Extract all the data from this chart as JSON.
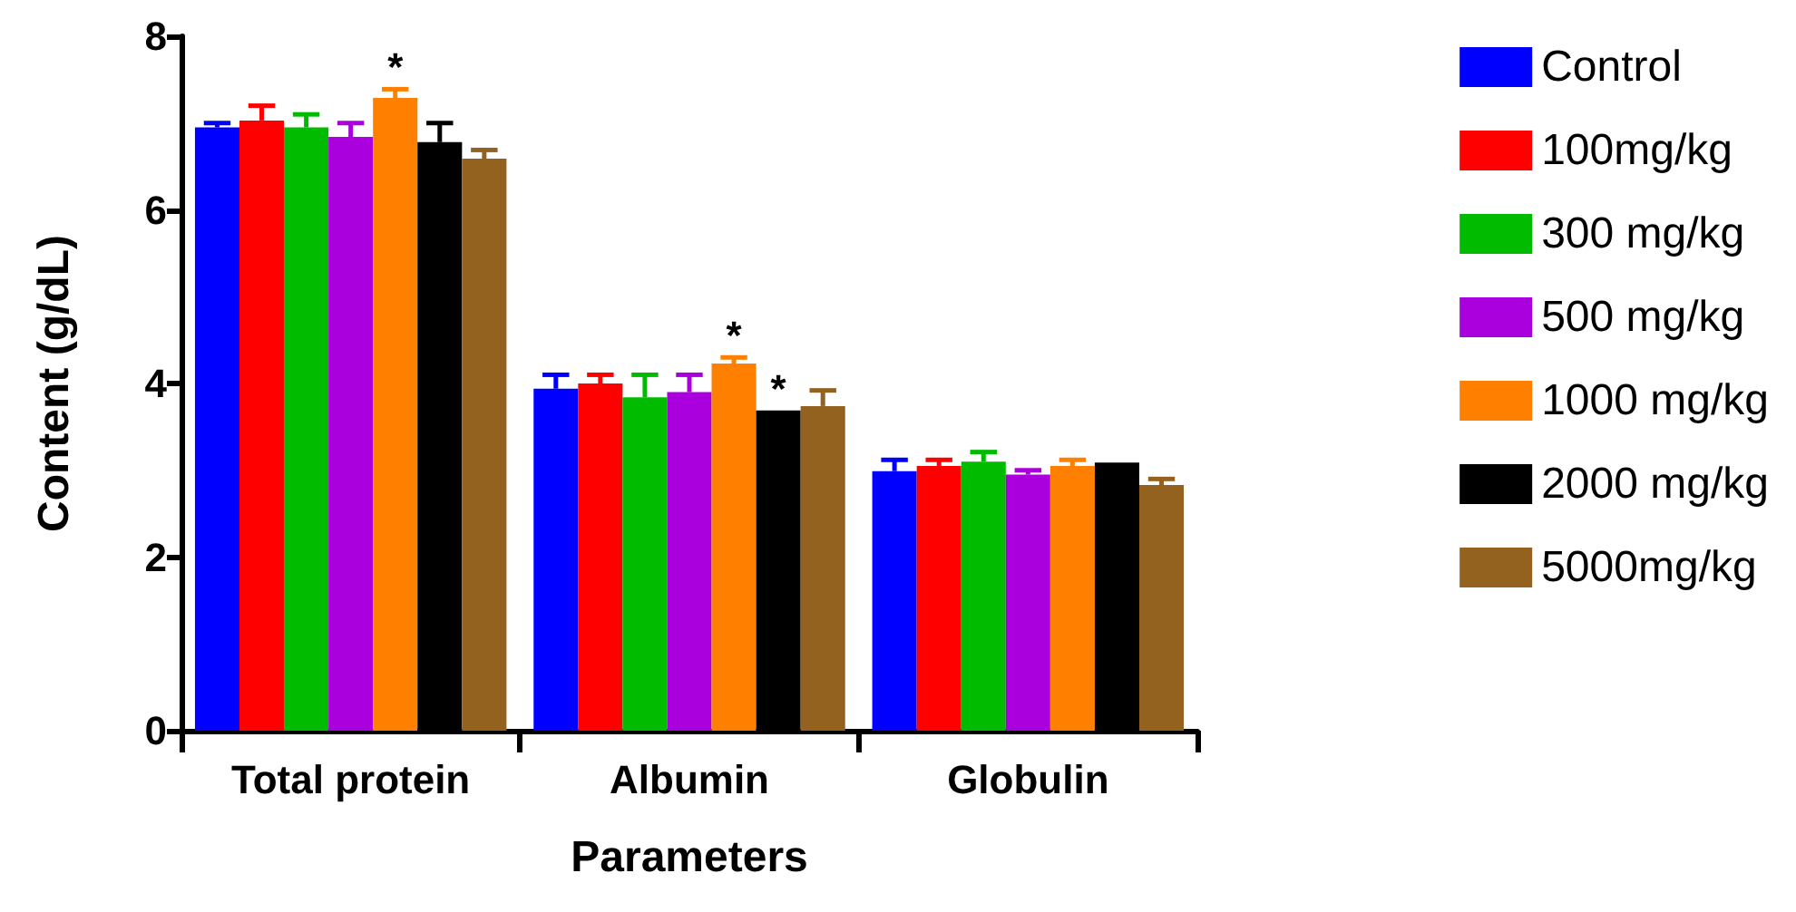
{
  "chart_data": {
    "type": "bar",
    "xlabel": "Parameters",
    "ylabel": "Content (g/dL)",
    "categories": [
      "Total protein",
      "Albumin",
      "Globulin"
    ],
    "series": [
      {
        "name": "Control",
        "color": "#0000ff",
        "values": [
          6.95,
          3.94,
          2.99
        ],
        "errors": [
          [
            6.95,
            7.0
          ],
          [
            3.94,
            4.1
          ],
          [
            2.99,
            3.12
          ]
        ]
      },
      {
        "name": "100mg/kg",
        "color": "#ff0000",
        "values": [
          7.03,
          4.0,
          3.05
        ],
        "errors": [
          [
            7.03,
            7.2
          ],
          [
            4.0,
            4.1
          ],
          [
            3.05,
            3.12
          ]
        ]
      },
      {
        "name": "300 mg/kg",
        "color": "#00bb00",
        "values": [
          6.95,
          3.84,
          3.1
        ],
        "errors": [
          [
            6.95,
            7.1
          ],
          [
            3.84,
            4.1
          ],
          [
            3.1,
            3.21
          ]
        ]
      },
      {
        "name": "500 mg/kg",
        "color": "#aa00dd",
        "values": [
          6.84,
          3.9,
          2.95
        ],
        "errors": [
          [
            6.84,
            7.0
          ],
          [
            3.9,
            4.1
          ],
          [
            2.95,
            3.0
          ]
        ]
      },
      {
        "name": "1000 mg/kg",
        "color": "#ff8000",
        "values": [
          7.29,
          4.23,
          3.05
        ],
        "errors": [
          [
            7.29,
            7.39
          ],
          [
            4.23,
            4.3
          ],
          [
            3.05,
            3.12
          ]
        ],
        "value_labels": [
          "*",
          "*",
          null
        ]
      },
      {
        "name": "2000 mg/kg",
        "color": "#000000",
        "values": [
          6.78,
          3.69,
          3.09
        ],
        "errors": [
          [
            6.78,
            7.0
          ],
          null,
          null
        ],
        "value_labels": [
          null,
          "*",
          null
        ]
      },
      {
        "name": "5000mg/kg",
        "color": "#93621f",
        "values": [
          6.59,
          3.74,
          2.83
        ],
        "errors": [
          [
            6.59,
            6.69
          ],
          [
            3.74,
            3.92
          ],
          [
            2.83,
            2.9
          ]
        ]
      }
    ],
    "ylim": [
      0,
      8
    ],
    "yticks": [
      0,
      2,
      4,
      6,
      8
    ],
    "grid": false,
    "legend": "right"
  }
}
